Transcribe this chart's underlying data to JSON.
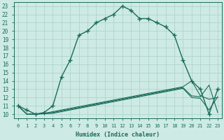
{
  "xlabel": "Humidex (Indice chaleur)",
  "bg_color": "#ceeae4",
  "grid_color": "#aed4ce",
  "line_color": "#1a6b5a",
  "xlim": [
    -0.5,
    23.5
  ],
  "ylim": [
    9.5,
    23.5
  ],
  "xticks": [
    0,
    1,
    2,
    3,
    4,
    5,
    6,
    7,
    8,
    9,
    10,
    11,
    12,
    13,
    14,
    15,
    16,
    17,
    18,
    19,
    20,
    21,
    22,
    23
  ],
  "yticks": [
    10,
    11,
    12,
    13,
    14,
    15,
    16,
    17,
    18,
    19,
    20,
    21,
    22,
    23
  ],
  "line_main_x": [
    0,
    1,
    2,
    3,
    4,
    5,
    6,
    7,
    8,
    9,
    10,
    11,
    12,
    13,
    14,
    15,
    16,
    17,
    18,
    19,
    20,
    21,
    22,
    23
  ],
  "line_main_y": [
    11,
    10.5,
    10,
    10.2,
    11,
    14.5,
    16.5,
    19.5,
    20,
    21,
    21.5,
    22,
    23,
    22.5,
    21.5,
    21.5,
    21,
    20.5,
    19.5,
    16.5,
    14.0,
    13.0,
    10,
    13.0
  ],
  "line_a_x": [
    0,
    1,
    2,
    3,
    4,
    5,
    6,
    7,
    8,
    9,
    10,
    11,
    12,
    13,
    14,
    15,
    16,
    17,
    18,
    19,
    20,
    21,
    22,
    23
  ],
  "line_a_y": [
    11,
    10,
    10,
    10.1,
    10.3,
    10.5,
    10.7,
    10.9,
    11.1,
    11.3,
    11.5,
    11.7,
    11.9,
    12.1,
    12.3,
    12.5,
    12.7,
    12.9,
    13.1,
    13.3,
    14.0,
    12.2,
    11.8,
    12.0
  ],
  "line_b_x": [
    0,
    1,
    2,
    3,
    4,
    5,
    6,
    7,
    8,
    9,
    10,
    11,
    12,
    13,
    14,
    15,
    16,
    17,
    18,
    19,
    20,
    21,
    22,
    23
  ],
  "line_b_y": [
    11,
    10,
    10,
    10.1,
    10.2,
    10.4,
    10.6,
    10.8,
    11.0,
    11.2,
    11.4,
    11.6,
    11.8,
    12.0,
    12.2,
    12.4,
    12.6,
    12.8,
    13.0,
    13.2,
    12.2,
    12.1,
    13.5,
    10.2
  ],
  "line_c_x": [
    0,
    1,
    2,
    3,
    4,
    5,
    6,
    7,
    8,
    9,
    10,
    11,
    12,
    13,
    14,
    15,
    16,
    17,
    18,
    19,
    20,
    21,
    22,
    23
  ],
  "line_c_y": [
    11,
    10,
    10,
    10.05,
    10.1,
    10.3,
    10.5,
    10.7,
    10.9,
    11.1,
    11.3,
    11.5,
    11.7,
    11.9,
    12.1,
    12.3,
    12.5,
    12.7,
    12.9,
    13.1,
    12.0,
    11.9,
    10.5,
    12.1
  ]
}
